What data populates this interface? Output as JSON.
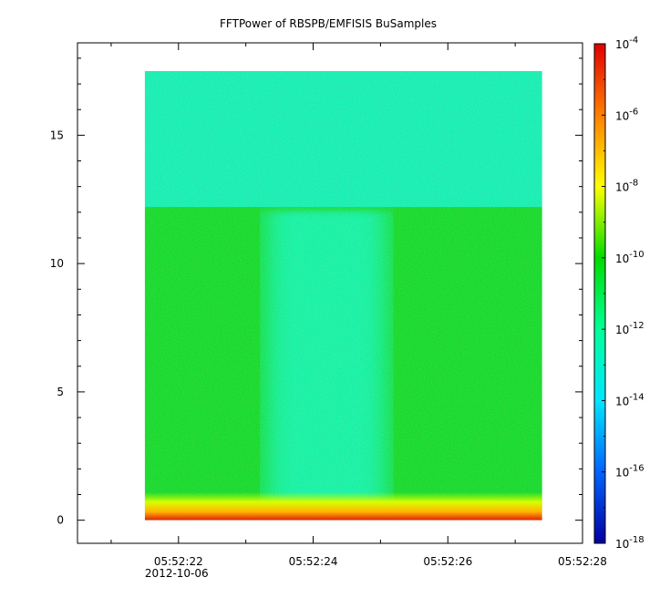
{
  "chart_data": {
    "type": "heatmap",
    "title": "FFTPower of RBSPB/EMFISIS  BuSamples",
    "xlabel": "",
    "ylabel": "",
    "x_ticks": [
      "05:52:22",
      "05:52:24",
      "05:52:26",
      "05:52:28"
    ],
    "x_date": "2012-10-06",
    "x_data_range": [
      "05:52:20.5",
      "05:52:28.0"
    ],
    "data_x_range": [
      "05:52:21.5",
      "05:52:27.4"
    ],
    "y_ticks": [
      0,
      5,
      10,
      15
    ],
    "ylim": [
      -0.9,
      18.6
    ],
    "data_y_range": [
      0,
      17.5
    ],
    "colorbar": {
      "scale": "log",
      "range": [
        1e-18,
        0.0001
      ],
      "tick_labels": [
        "10-4",
        "10-6",
        "10-8",
        "10-10",
        "10-12",
        "10-14",
        "10-16",
        "10-18"
      ],
      "tick_values": [
        -4,
        -6,
        -8,
        -10,
        -12,
        -14,
        -16,
        -18
      ],
      "colors": [
        "#e00000",
        "#ff7f00",
        "#ffff00",
        "#00dc00",
        "#00ff99",
        "#00e6ff",
        "#0064ff",
        "#0000a0"
      ]
    },
    "regions": [
      {
        "label": "upper band",
        "y_range": [
          12.2,
          17.5
        ],
        "approx_log_power": -12.5
      },
      {
        "label": "lower band (outside quiet interval)",
        "y_range": [
          0.5,
          12.2
        ],
        "approx_log_power": -10.3
      },
      {
        "label": "quiet interval",
        "x_range": [
          "05:52:23.3",
          "05:52:25.1"
        ],
        "y_range": [
          0.5,
          12.2
        ],
        "approx_log_power": -12.2
      },
      {
        "label": "near-zero frequency strip",
        "y_range": [
          0,
          0.6
        ],
        "approx_log_power": -7.5
      }
    ]
  }
}
